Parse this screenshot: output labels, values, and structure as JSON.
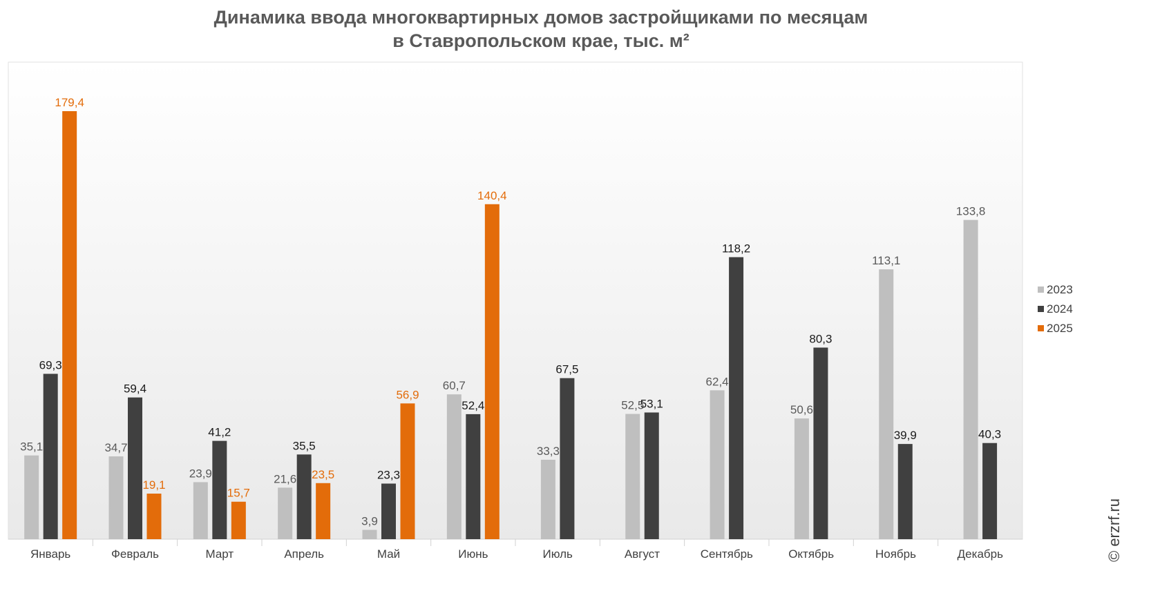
{
  "chart_data": {
    "type": "bar",
    "title_line1": "Динамика ввода многоквартирных домов застройщиками по месяцам",
    "title_line2": "в Ставропольском крае, тыс. м²",
    "categories": [
      "Январь",
      "Февраль",
      "Март",
      "Апрель",
      "Май",
      "Июнь",
      "Июль",
      "Август",
      "Сентябрь",
      "Октябрь",
      "Ноябрь",
      "Декабрь"
    ],
    "series": [
      {
        "name": "2023",
        "color": "#bfbfbf",
        "label_color": "#595959",
        "values": [
          35.1,
          34.7,
          23.9,
          21.6,
          3.9,
          60.7,
          33.3,
          52.5,
          62.4,
          50.6,
          113.1,
          133.8
        ],
        "labels": [
          "35,1",
          "34,7",
          "23,9",
          "21,6",
          "3,9",
          "60,7",
          "33,3",
          "52,5",
          "62,4",
          "50,6",
          "113,1",
          "133,8"
        ]
      },
      {
        "name": "2024",
        "color": "#404040",
        "label_color": "#1a1a1a",
        "values": [
          69.3,
          59.4,
          41.2,
          35.5,
          23.3,
          52.4,
          67.5,
          53.1,
          118.2,
          80.3,
          39.9,
          40.3
        ],
        "labels": [
          "69,3",
          "59,4",
          "41,2",
          "35,5",
          "23,3",
          "52,4",
          "67,5",
          "53,1",
          "118,2",
          "80,3",
          "39,9",
          "40,3"
        ]
      },
      {
        "name": "2025",
        "color": "#e36c0a",
        "label_color": "#e36c0a",
        "values": [
          179.4,
          19.1,
          15.7,
          23.5,
          56.9,
          140.4,
          null,
          null,
          null,
          null,
          null,
          null
        ],
        "labels": [
          "179,4",
          "19,1",
          "15,7",
          "23,5",
          "56,9",
          "140,4",
          "",
          "",
          "",
          "",
          "",
          ""
        ]
      }
    ],
    "ylim": [
      0,
      200
    ],
    "legend_position": "right",
    "grid": false
  },
  "watermark": "© erzrf.ru"
}
